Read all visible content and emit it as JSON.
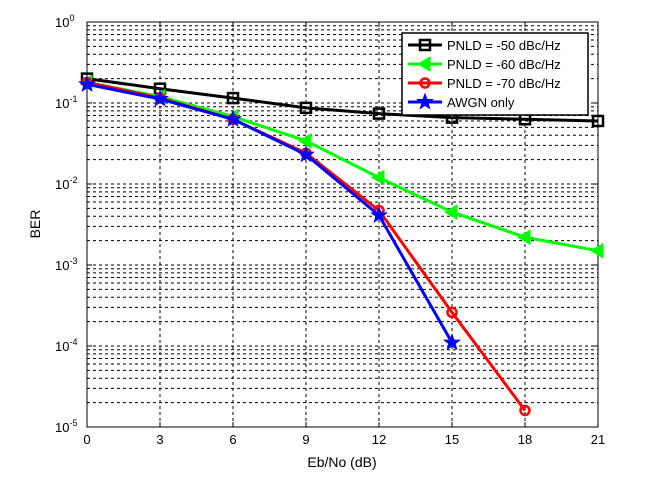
{
  "chart_data": {
    "type": "line",
    "xlabel": "Eb/No (dB)",
    "ylabel": "BER",
    "x_ticks": [
      0,
      3,
      6,
      9,
      12,
      15,
      18,
      21
    ],
    "xlim": [
      0,
      21
    ],
    "y_scale": "log",
    "ylim": [
      1e-05,
      1
    ],
    "y_ticks": [
      {
        "value": 1,
        "base": "10",
        "exp": "0"
      },
      {
        "value": 0.1,
        "base": "10",
        "exp": "-1"
      },
      {
        "value": 0.01,
        "base": "10",
        "exp": "-2"
      },
      {
        "value": 0.001,
        "base": "10",
        "exp": "-3"
      },
      {
        "value": 0.0001,
        "base": "10",
        "exp": "-4"
      },
      {
        "value": 1e-05,
        "base": "10",
        "exp": "-5"
      }
    ],
    "grid": true,
    "legend_position": "top-right",
    "series": [
      {
        "name": "PNLD = -50 dBc/Hz",
        "color": "#000000",
        "marker": "square",
        "x": [
          0,
          3,
          6,
          9,
          12,
          15,
          18,
          21
        ],
        "y": [
          0.2,
          0.15,
          0.115,
          0.087,
          0.074,
          0.066,
          0.063,
          0.06
        ]
      },
      {
        "name": "PNLD = -60 dBc/Hz",
        "color": "#00ff00",
        "marker": "triangle-left",
        "x": [
          0,
          3,
          6,
          9,
          12,
          15,
          18,
          21
        ],
        "y": [
          0.18,
          0.12,
          0.068,
          0.034,
          0.012,
          0.0045,
          0.0022,
          0.0015
        ]
      },
      {
        "name": "PNLD = -70 dBc/Hz",
        "color": "#ff0000",
        "marker": "circle",
        "x": [
          0,
          3,
          6,
          9,
          12,
          15,
          18
        ],
        "y": [
          0.18,
          0.115,
          0.063,
          0.024,
          0.0047,
          0.00026,
          1.6e-05
        ]
      },
      {
        "name": "AWGN only",
        "color": "#0000ff",
        "marker": "star",
        "x": [
          0,
          3,
          6,
          9,
          12,
          15
        ],
        "y": [
          0.17,
          0.112,
          0.063,
          0.023,
          0.0041,
          0.00011
        ]
      }
    ]
  }
}
